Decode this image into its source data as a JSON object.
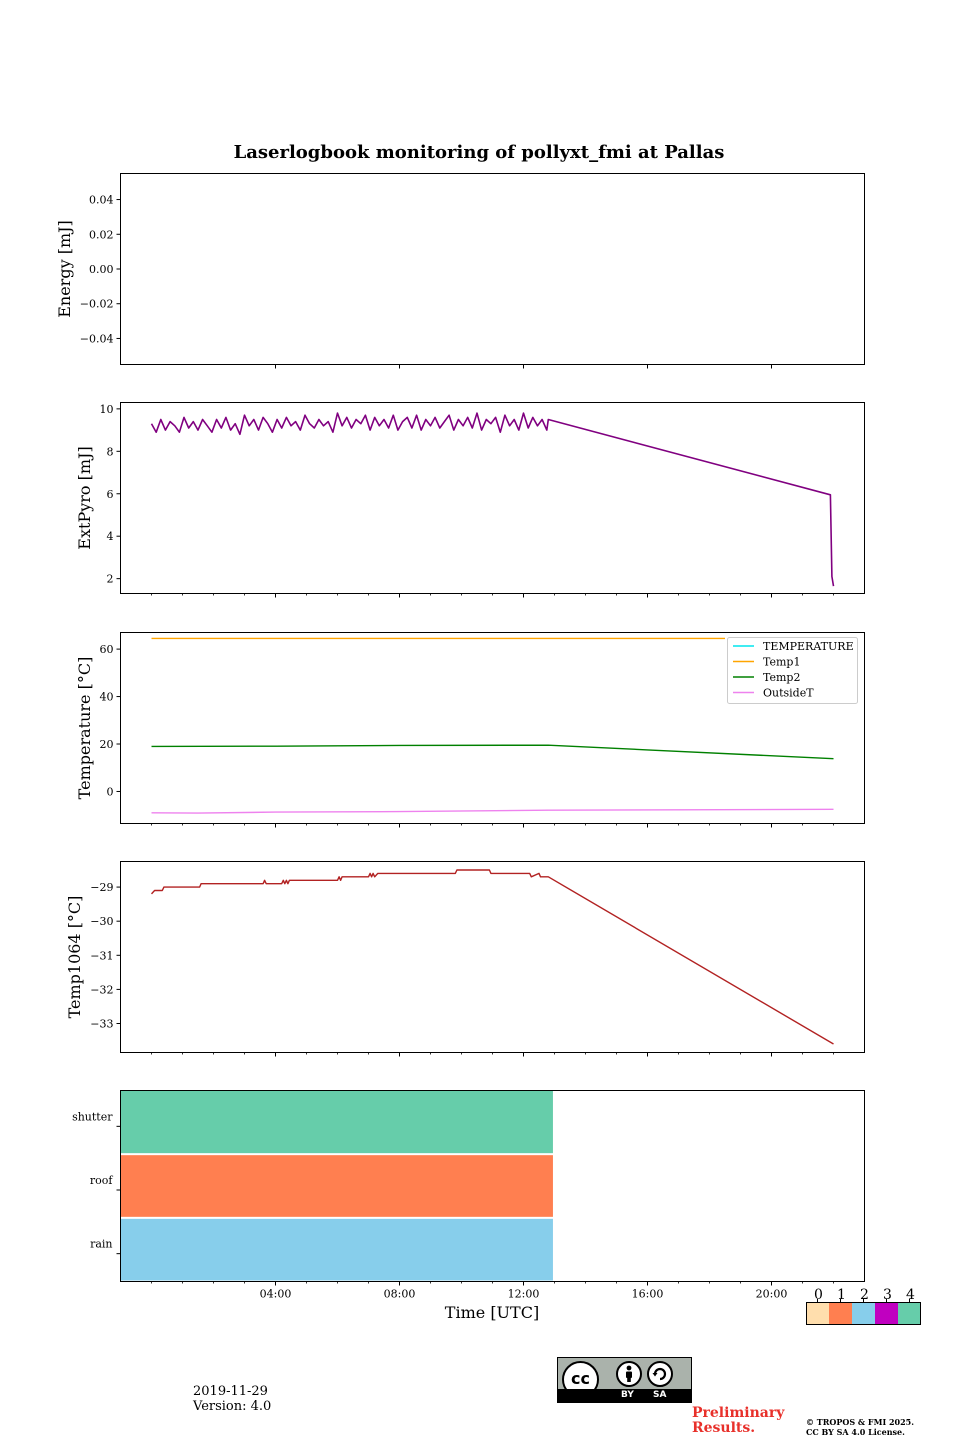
{
  "title": "Laserlogbook monitoring of pollyxt_fmi at Pallas",
  "footer": {
    "date": "2019-11-29",
    "version": "Version: 4.0",
    "preliminary": "Preliminary Results.",
    "copyright_line1": "© TROPOS & FMI 2025.",
    "copyright_line2": "CC BY SA 4.0 License.",
    "license_by": "BY",
    "license_sa": "SA",
    "license_cc": "cc"
  },
  "colors": {
    "extpyro": "#800080",
    "temperature": "#00e5ee",
    "temp1": "#ffa500",
    "temp2": "#008000",
    "outsideT": "#ee82ee",
    "temp1064": "#b22222",
    "status_colors": [
      "#ffdead",
      "#ff7f50",
      "#87ceeb",
      "#c000c0",
      "#66cdaa"
    ]
  },
  "chart_data": [
    {
      "type": "line",
      "panel": "energy",
      "ylabel": "Energy [mJ]",
      "ylim": [
        -0.055,
        0.055
      ],
      "yticks": [
        0.04,
        0.02,
        0.0,
        -0.02,
        -0.04
      ],
      "ytick_labels": [
        "0.04",
        "0.02",
        "0.00",
        "−0.02",
        "−0.04"
      ],
      "series": []
    },
    {
      "type": "line",
      "panel": "extpyro",
      "ylabel": "ExtPyro [mJ]",
      "ylim": [
        1.3,
        10.3
      ],
      "yticks": [
        10,
        8,
        6,
        4,
        2
      ],
      "ytick_labels": [
        "10",
        "8",
        "6",
        "4",
        "2"
      ],
      "series": [
        {
          "name": "ExtPyro",
          "x": [
            0.0,
            0.15,
            0.3,
            0.45,
            0.6,
            0.75,
            0.9,
            1.05,
            1.2,
            1.35,
            1.5,
            1.65,
            1.8,
            1.95,
            2.1,
            2.25,
            2.4,
            2.55,
            2.7,
            2.85,
            3.0,
            3.15,
            3.3,
            3.45,
            3.6,
            3.75,
            3.9,
            4.05,
            4.2,
            4.35,
            4.5,
            4.65,
            4.8,
            4.95,
            5.1,
            5.25,
            5.4,
            5.55,
            5.7,
            5.85,
            6.0,
            6.15,
            6.3,
            6.45,
            6.6,
            6.75,
            6.9,
            7.05,
            7.2,
            7.35,
            7.5,
            7.65,
            7.8,
            7.95,
            8.1,
            8.25,
            8.4,
            8.55,
            8.7,
            8.85,
            9.0,
            9.15,
            9.3,
            9.45,
            9.6,
            9.75,
            9.9,
            10.05,
            10.2,
            10.35,
            10.5,
            10.65,
            10.8,
            10.95,
            11.1,
            11.25,
            11.4,
            11.55,
            11.7,
            11.85,
            12.0,
            12.15,
            12.3,
            12.45,
            12.6,
            12.75,
            12.8,
            21.9,
            21.95,
            22.0
          ],
          "values": [
            9.3,
            8.9,
            9.5,
            9.0,
            9.4,
            9.2,
            8.9,
            9.6,
            9.1,
            9.4,
            9.0,
            9.5,
            9.2,
            8.9,
            9.5,
            9.1,
            9.6,
            9.0,
            9.3,
            8.8,
            9.7,
            9.2,
            9.5,
            9.0,
            9.6,
            9.3,
            8.9,
            9.5,
            9.1,
            9.6,
            9.2,
            9.4,
            9.0,
            9.7,
            9.3,
            9.1,
            9.5,
            9.2,
            9.4,
            8.9,
            9.8,
            9.2,
            9.6,
            9.1,
            9.5,
            9.3,
            9.7,
            9.0,
            9.6,
            9.2,
            9.5,
            9.1,
            9.7,
            9.0,
            9.4,
            9.6,
            9.1,
            9.7,
            9.0,
            9.5,
            9.2,
            9.6,
            9.1,
            9.4,
            9.7,
            9.0,
            9.5,
            9.2,
            9.6,
            9.1,
            9.8,
            9.0,
            9.5,
            9.3,
            9.6,
            8.9,
            9.7,
            9.2,
            9.5,
            9.0,
            9.8,
            9.1,
            9.6,
            9.2,
            9.5,
            9.0,
            9.5,
            5.95,
            2.1,
            1.65
          ]
        }
      ]
    },
    {
      "type": "line",
      "panel": "temperature",
      "ylabel": "Temperature [°C]",
      "ylim": [
        -13.5,
        67
      ],
      "yticks": [
        60,
        40,
        20,
        0
      ],
      "ytick_labels": [
        "60",
        "40",
        "20",
        "0"
      ],
      "legend_location": "upper right",
      "series": [
        {
          "name": "TEMPERATURE",
          "x": [],
          "values": []
        },
        {
          "name": "Temp1",
          "x": [
            0.0,
            18.5
          ],
          "values": [
            64.5,
            64.5
          ]
        },
        {
          "name": "Temp2",
          "x": [
            0.0,
            4.0,
            8.0,
            12.8,
            16.0,
            22.0
          ],
          "values": [
            19.0,
            19.1,
            19.4,
            19.5,
            17.5,
            13.8
          ]
        },
        {
          "name": "OutsideT",
          "x": [
            0.0,
            1.5,
            4.0,
            8.0,
            12.8,
            22.0
          ],
          "values": [
            -9.0,
            -9.1,
            -8.7,
            -8.5,
            -7.9,
            -7.5
          ]
        }
      ]
    },
    {
      "type": "line",
      "panel": "temp1064",
      "ylabel": "Temp1064 [°C]",
      "ylim": [
        -33.85,
        -28.25
      ],
      "yticks": [
        -29,
        -30,
        -31,
        -32,
        -33
      ],
      "ytick_labels": [
        "−29",
        "−30",
        "−31",
        "−32",
        "−33"
      ],
      "series": [
        {
          "name": "Temp1064",
          "x": [
            0.0,
            0.1,
            0.2,
            0.35,
            0.4,
            1.55,
            1.6,
            3.6,
            3.65,
            3.7,
            3.75,
            4.2,
            4.25,
            4.3,
            4.35,
            4.4,
            4.45,
            6.0,
            6.05,
            6.1,
            6.15,
            6.2,
            7.0,
            7.05,
            7.1,
            7.15,
            7.2,
            7.3,
            7.35,
            7.4,
            9.8,
            9.85,
            10.9,
            10.95,
            12.2,
            12.25,
            12.5,
            12.55,
            12.8,
            22.0
          ],
          "values": [
            -29.2,
            -29.1,
            -29.1,
            -29.1,
            -29.0,
            -29.0,
            -28.9,
            -28.9,
            -28.8,
            -28.9,
            -28.9,
            -28.9,
            -28.8,
            -28.9,
            -28.8,
            -28.9,
            -28.8,
            -28.8,
            -28.7,
            -28.8,
            -28.7,
            -28.7,
            -28.7,
            -28.6,
            -28.7,
            -28.6,
            -28.7,
            -28.6,
            -28.6,
            -28.6,
            -28.6,
            -28.5,
            -28.5,
            -28.6,
            -28.6,
            -28.7,
            -28.6,
            -28.7,
            -28.7,
            -33.6
          ]
        }
      ]
    },
    {
      "type": "heatmap",
      "panel": "status",
      "rows": [
        "shutter",
        "roof",
        "rain"
      ],
      "x_start": 0.0,
      "x_end": 12.95,
      "row_values": [
        4,
        1,
        2
      ],
      "xlabel": "Time [UTC]",
      "xlim": [
        -1.0,
        23.0
      ],
      "xticks": [
        4,
        8,
        12,
        16,
        20
      ],
      "xtick_labels": [
        "04:00",
        "08:00",
        "12:00",
        "16:00",
        "20:00"
      ],
      "colorbar_labels": [
        "0",
        "1",
        "2",
        "3",
        "4"
      ]
    }
  ]
}
